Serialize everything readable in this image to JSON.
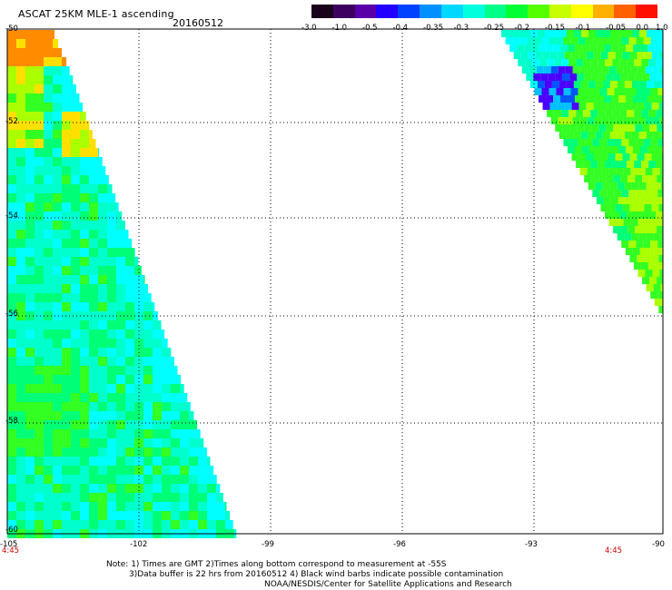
{
  "title": "ASCAT 25KM MLE-1 ascending",
  "date": "20160512",
  "colorbar": {
    "labels": [
      "-3.0",
      "-1.0",
      "-0.5",
      "-0.4",
      "-0.35",
      "-0.3",
      "-0.25",
      "-0.2",
      "-0.15",
      "-0.1",
      "-0.05",
      "0.0",
      "1.0"
    ],
    "colors": [
      "#1a001a",
      "#3d0060",
      "#5a00a8",
      "#2200ff",
      "#0040ff",
      "#0090ff",
      "#00d8ff",
      "#00ffdd",
      "#00ff88",
      "#00ff33",
      "#55ff00",
      "#c8ff00",
      "#ffff00",
      "#ffb000",
      "#ff6000",
      "#ff1000"
    ]
  },
  "y_axis": {
    "labels": [
      "-50",
      "-52",
      "-54",
      "-56",
      "-58",
      "-60"
    ]
  },
  "x_axis": {
    "labels": [
      "-105",
      "-102",
      "-99",
      "-96",
      "-93",
      "-90"
    ]
  },
  "times": {
    "left": "4:45",
    "right": "4:45"
  },
  "notes": {
    "line1": "Note: 1) Times are GMT 2)Times along bottom correspond to measurement at -55S",
    "line2": "3)Data buffer is 22 hrs from 20160512 4) Black wind barbs indicate possible contamination",
    "line3": "NOAA/NESDIS/Center for Satellite Applications and Research"
  }
}
